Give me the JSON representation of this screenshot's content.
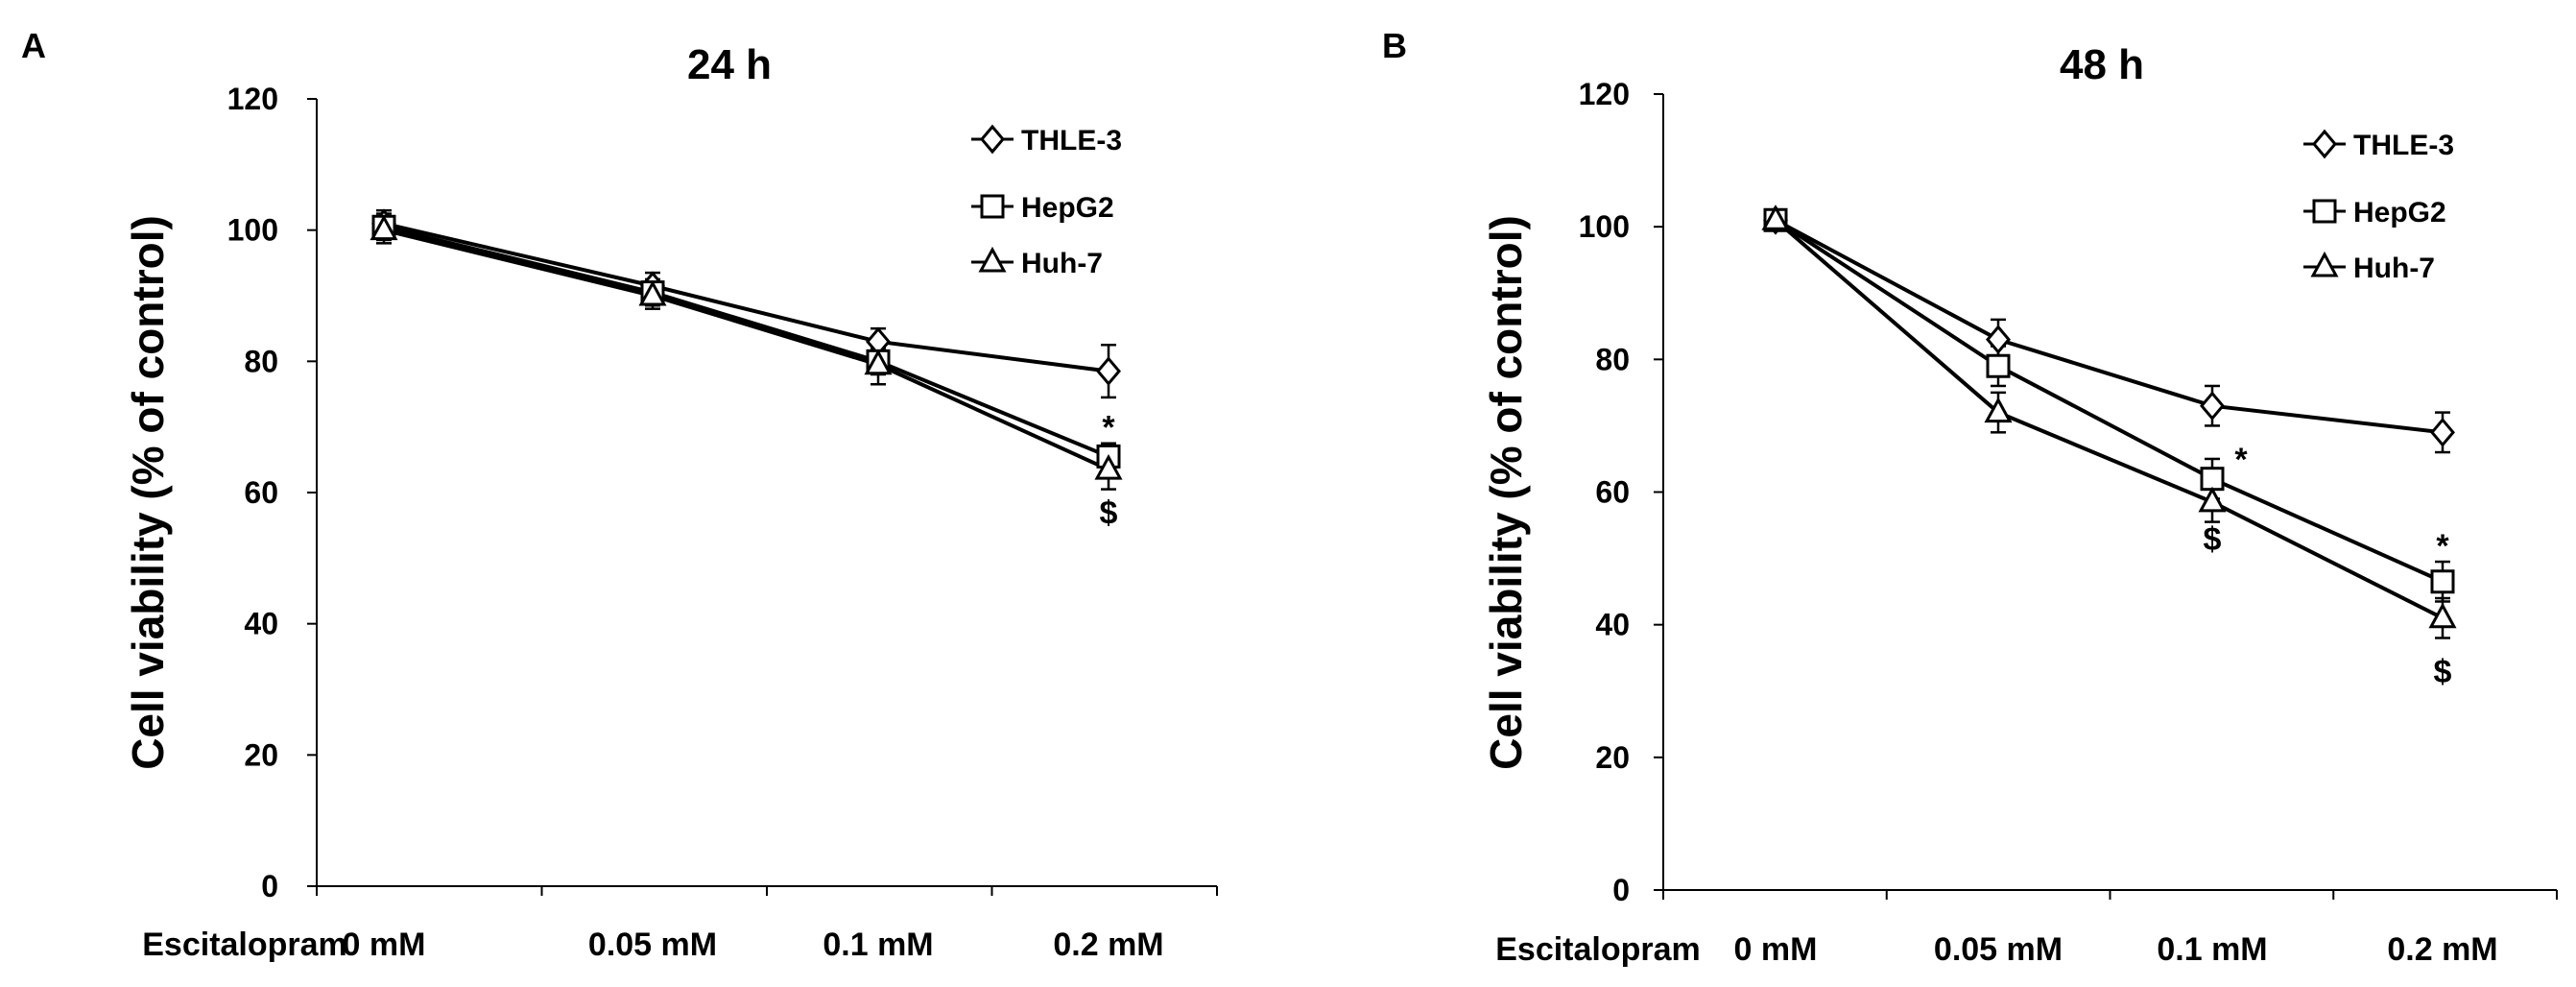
{
  "chart_data": [
    {
      "type": "line",
      "panel": "A",
      "title": "24 h",
      "xlabel": "Escitalopram",
      "ylabel": "Cell viability (% of control)",
      "categories": [
        "0 mM",
        "0.05 mM",
        "0.1 mM",
        "0.2 mM"
      ],
      "ylim": [
        0,
        120
      ],
      "yticks": [
        0,
        20,
        40,
        60,
        80,
        100,
        120
      ],
      "legend": "top-right",
      "grid": false,
      "series": [
        {
          "name": "THLE-3",
          "marker": "diamond",
          "values": [
            101,
            91.5,
            83,
            78.5
          ],
          "errors": [
            2,
            2,
            2,
            4
          ]
        },
        {
          "name": "HepG2",
          "marker": "square",
          "values": [
            100.5,
            90.5,
            80,
            65.5
          ],
          "errors": [
            2,
            2,
            2,
            2
          ]
        },
        {
          "name": "Huh-7",
          "marker": "triangle",
          "values": [
            100,
            90,
            79.5,
            63.5
          ],
          "errors": [
            2,
            2,
            3,
            3
          ]
        }
      ],
      "annotations": [
        {
          "text": "*",
          "category": "0.2 mM",
          "y": 70
        },
        {
          "text": "$",
          "category": "0.2 mM",
          "y": 57
        }
      ]
    },
    {
      "type": "line",
      "panel": "B",
      "title": "48 h",
      "xlabel": "Escitalopram",
      "ylabel": "Cell viability (% of control)",
      "categories": [
        "0 mM",
        "0.05 mM",
        "0.1 mM",
        "0.2 mM"
      ],
      "ylim": [
        0,
        120
      ],
      "yticks": [
        0,
        20,
        40,
        60,
        80,
        100,
        120
      ],
      "legend": "top-right",
      "grid": false,
      "series": [
        {
          "name": "THLE-3",
          "marker": "diamond",
          "values": [
            101,
            83,
            73,
            69
          ],
          "errors": [
            1.5,
            3,
            3,
            3
          ]
        },
        {
          "name": "HepG2",
          "marker": "square",
          "values": [
            101,
            79,
            62,
            46.5
          ],
          "errors": [
            1.5,
            3,
            3,
            3
          ]
        },
        {
          "name": "Huh-7",
          "marker": "triangle",
          "values": [
            101,
            72,
            58.5,
            41
          ],
          "errors": [
            1.5,
            3,
            3,
            3
          ]
        }
      ],
      "annotations": [
        {
          "text": "*",
          "category": "0.1 mM",
          "y": 65,
          "side": "right"
        },
        {
          "text": "$",
          "category": "0.1 mM",
          "y": 53
        },
        {
          "text": "*",
          "category": "0.2 mM",
          "y": 52
        },
        {
          "text": "$",
          "category": "0.2 mM",
          "y": 33
        }
      ]
    }
  ]
}
